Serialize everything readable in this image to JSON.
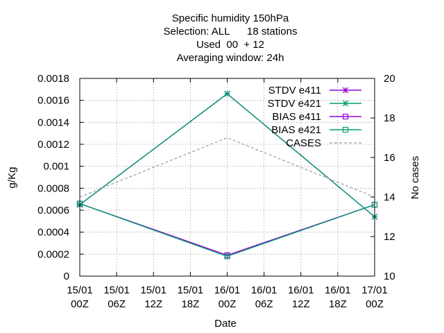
{
  "chart_data": {
    "type": "line",
    "title": [
      "Specific humidity 150hPa",
      "Selection: ALL      18 stations",
      "Used  00  + 12",
      "Averaging window: 24h"
    ],
    "xlabel": "Date",
    "ylabel": "g/Kg",
    "y2label": "No cases",
    "x_ticks": [
      {
        "top": "15/01",
        "bottom": "00Z"
      },
      {
        "top": "15/01",
        "bottom": "06Z"
      },
      {
        "top": "15/01",
        "bottom": "12Z"
      },
      {
        "top": "15/01",
        "bottom": "18Z"
      },
      {
        "top": "16/01",
        "bottom": "00Z"
      },
      {
        "top": "16/01",
        "bottom": "06Z"
      },
      {
        "top": "16/01",
        "bottom": "12Z"
      },
      {
        "top": "16/01",
        "bottom": "18Z"
      },
      {
        "top": "17/01",
        "bottom": "00Z"
      }
    ],
    "x": [
      "15/01 00Z",
      "16/01 00Z",
      "17/01 00Z"
    ],
    "xlim": [
      0,
      48
    ],
    "x_hours": [
      0,
      24,
      48
    ],
    "ylim": [
      0,
      0.0018
    ],
    "y_ticks": [
      "0",
      "0.0002",
      "0.0004",
      "0.0006",
      "0.0008",
      "0.001",
      "0.0012",
      "0.0014",
      "0.0016",
      "0.0018"
    ],
    "y2lim": [
      10,
      20
    ],
    "y2_ticks": [
      "10",
      "12",
      "14",
      "16",
      "18",
      "20"
    ],
    "grid": true,
    "legend_position": "top-right",
    "series": [
      {
        "name": "STDV e411",
        "color": "#9400d3",
        "marker": "star",
        "dash": false,
        "axis": "y",
        "values": [
          0.00065,
          0.00166,
          0.00054
        ]
      },
      {
        "name": "STDV e421",
        "color": "#009e73",
        "marker": "star",
        "dash": false,
        "axis": "y",
        "values": [
          0.00065,
          0.00166,
          0.00054
        ]
      },
      {
        "name": "BIAS e411",
        "color": "#9400d3",
        "marker": "square",
        "dash": false,
        "axis": "y",
        "values": [
          0.00066,
          0.00019,
          0.00065
        ]
      },
      {
        "name": "BIAS e421",
        "color": "#009e73",
        "marker": "square",
        "dash": false,
        "axis": "y",
        "values": [
          0.00066,
          0.00018,
          0.00065
        ]
      },
      {
        "name": "CASES",
        "color": "#999999",
        "marker": "none",
        "dash": true,
        "axis": "y2",
        "values": [
          14,
          17,
          14
        ]
      }
    ]
  }
}
